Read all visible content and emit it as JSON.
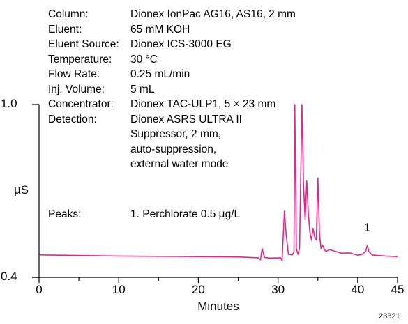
{
  "conditions": [
    {
      "label": "Column:",
      "value": "Dionex IonPac AG16, AS16, 2 mm"
    },
    {
      "label": "Eluent:",
      "value": "65 mM KOH"
    },
    {
      "label": "Eluent Source:",
      "value": "Dionex ICS-3000 EG"
    },
    {
      "label": "Temperature:",
      "value": "30 °C"
    },
    {
      "label": "Flow Rate:",
      "value": "0.25 mL/min"
    },
    {
      "label": "Inj. Volume:",
      "value": "5 mL"
    },
    {
      "label": "Concentrator:",
      "value": "Dionex TAC-ULP1, 5 × 23 mm"
    },
    {
      "label": "Detection:",
      "value": "Dionex ASRS ULTRA II"
    },
    {
      "label": "",
      "value": "Suppressor, 2 mm,"
    },
    {
      "label": "",
      "value": "auto-suppression,"
    },
    {
      "label": "",
      "value": "external water mode"
    }
  ],
  "peaks_label": "Peaks:",
  "peaks_value": "1. Perchlorate  0.5 µg/L",
  "figure_id": "23321",
  "colors": {
    "trace": "#e0288c",
    "axis": "#000000"
  },
  "chart_data": {
    "type": "line",
    "xlabel": "Minutes",
    "ylabel": "µS",
    "xlim": [
      0,
      45
    ],
    "ylim": [
      0.4,
      1.0
    ],
    "x_ticks": [
      0,
      10,
      20,
      30,
      40,
      45
    ],
    "y_ticks": [
      1.0,
      0.4
    ],
    "y_tick_labels": [
      "1.0",
      "0.4"
    ],
    "grid": false,
    "annotations": [
      {
        "text": "1",
        "x": 41.2,
        "y": 0.511
      }
    ],
    "series": [
      {
        "x": [
          0,
          5,
          10,
          15,
          20,
          25,
          27.5,
          27.8,
          28.0,
          28.3,
          29.0,
          30.3,
          30.5,
          30.8,
          31.0,
          31.3,
          31.8,
          32.0,
          32.1,
          32.3,
          32.5,
          32.7,
          33.0,
          33.2,
          33.4,
          33.6,
          33.8,
          34.0,
          34.2,
          34.4,
          34.6,
          34.8,
          35.0,
          35.2,
          35.4,
          35.6,
          35.8,
          36.0,
          36.5,
          37.0,
          38.0,
          39.0,
          40.0,
          40.5,
          41.0,
          41.2,
          41.4,
          41.8,
          42.5,
          43.5,
          45.0
        ],
        "y": [
          0.478,
          0.476,
          0.474,
          0.473,
          0.472,
          0.471,
          0.468,
          0.461,
          0.5,
          0.469,
          0.467,
          0.468,
          0.458,
          0.63,
          0.553,
          0.48,
          0.478,
          0.49,
          1.0,
          0.5,
          0.48,
          0.5,
          1.0,
          0.72,
          0.6,
          0.735,
          0.62,
          0.555,
          0.53,
          0.57,
          0.54,
          0.53,
          0.745,
          0.55,
          0.5,
          0.512,
          0.498,
          0.49,
          0.496,
          0.492,
          0.484,
          0.485,
          0.477,
          0.479,
          0.49,
          0.511,
          0.49,
          0.478,
          0.476,
          0.474,
          0.472
        ]
      }
    ]
  }
}
